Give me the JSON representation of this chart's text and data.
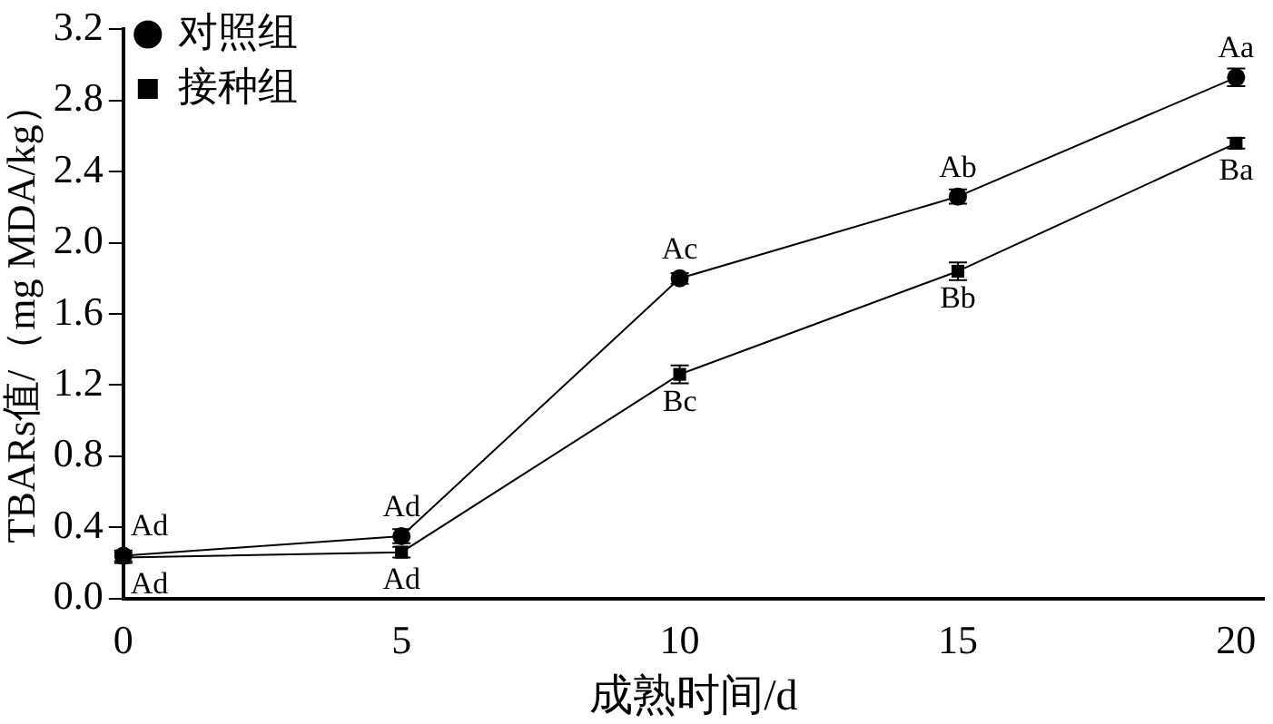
{
  "chart_data": {
    "type": "line",
    "xlabel": "成熟时间/d",
    "ylabel": "TBARs值/（mg MDA/kg）",
    "x": [
      0,
      5,
      10,
      15,
      20
    ],
    "series": [
      {
        "name": "对照组",
        "color": "#000000",
        "marker": "circle",
        "values": [
          0.24,
          0.35,
          1.8,
          2.26,
          2.93
        ],
        "errors": [
          0.03,
          0.04,
          0.03,
          0.04,
          0.05
        ]
      },
      {
        "name": "接种组",
        "color": "#000000",
        "marker": "square",
        "values": [
          0.23,
          0.26,
          1.26,
          1.84,
          2.56
        ],
        "errors": [
          0.03,
          0.03,
          0.05,
          0.05,
          0.03
        ]
      }
    ],
    "xlim": [
      0,
      20.5
    ],
    "xticks": [
      0,
      5,
      10,
      15,
      20
    ],
    "ylim": [
      0,
      3.2
    ],
    "yticks": [
      {
        "value": 0,
        "label": "0.0"
      },
      0.4,
      0.8,
      1.2,
      1.6,
      {
        "value": 2,
        "label": "2.0"
      },
      2.4,
      2.8,
      3.2
    ],
    "grid": false,
    "legend": "top left",
    "line_style": "solid",
    "annotations": [
      {
        "text": "Ad",
        "x": 0,
        "y": 0.24
      },
      {
        "text": "Ad",
        "x": 5,
        "y": 0.35
      },
      {
        "text": "Ac",
        "x": 10,
        "y": 1.8
      },
      {
        "text": "Ab",
        "x": 15,
        "y": 2.26
      },
      {
        "text": "Aa",
        "x": 20,
        "y": 2.93
      },
      {
        "text": "Ad",
        "x": 0,
        "y": 0.23
      },
      {
        "text": "Ad",
        "x": 5,
        "y": 0.26
      },
      {
        "text": "Bc",
        "x": 10,
        "y": 1.26
      },
      {
        "text": "Bb",
        "x": 15,
        "y": 1.84
      },
      {
        "text": "Ba",
        "x": 20,
        "y": 2.56
      }
    ]
  }
}
